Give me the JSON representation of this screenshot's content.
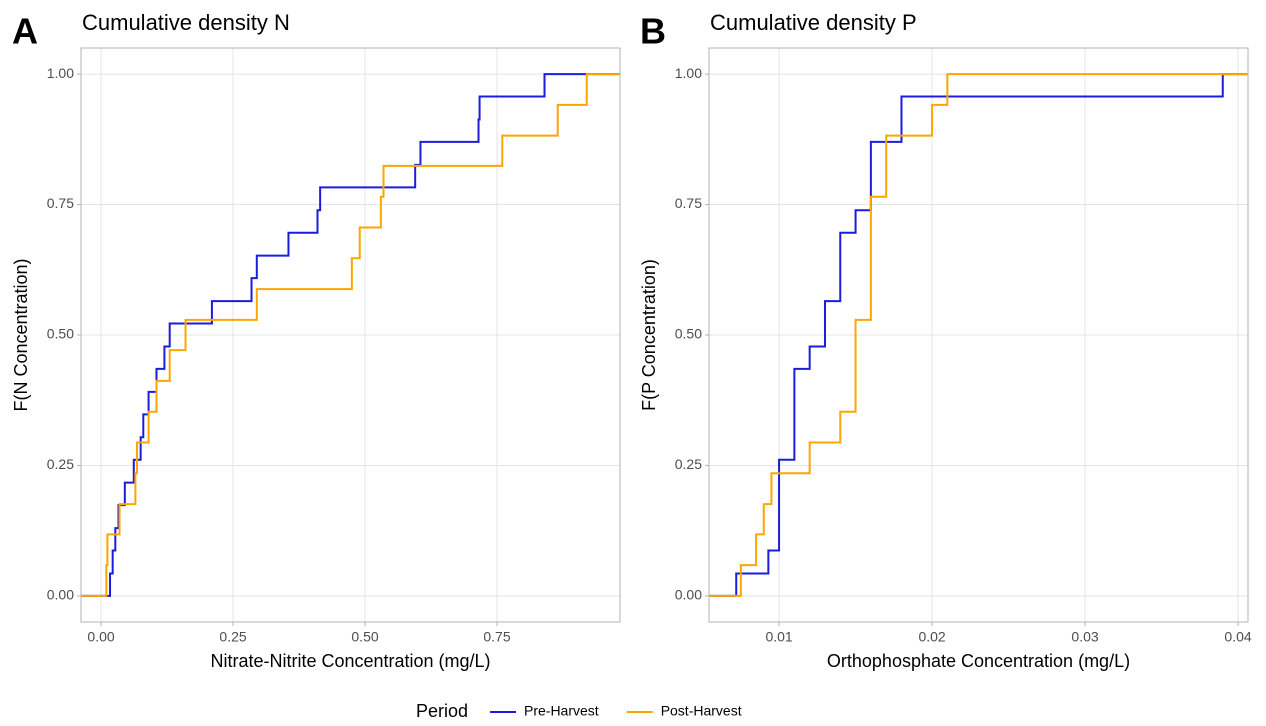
{
  "chart_data": [
    {
      "type": "step",
      "tag": "A",
      "title": "Cumulative density N",
      "x_label": "Nitrate-Nitrite Concentration (mg/L)",
      "y_label": "F(N Concentration)",
      "xlim": [
        -0.038,
        0.983
      ],
      "ylim": [
        -0.05,
        1.05
      ],
      "xticks": [
        {
          "value": 0,
          "label": "0.00"
        },
        {
          "value": 0.25,
          "label": "0.25"
        },
        {
          "value": 0.5,
          "label": "0.50"
        },
        {
          "value": 0.75,
          "label": "0.75"
        }
      ],
      "yticks": [
        {
          "value": 0,
          "label": "0.00"
        },
        {
          "value": 0.25,
          "label": "0.25"
        },
        {
          "value": 0.5,
          "label": "0.50"
        },
        {
          "value": 0.75,
          "label": "0.75"
        },
        {
          "value": 1,
          "label": "1.00"
        }
      ],
      "grid": true,
      "series": [
        {
          "name": "Pre-Harvest",
          "color": "#1c1cdc",
          "x": [
            -0.038,
            0.017,
            0.022,
            0.027,
            0.033,
            0.045,
            0.062,
            0.075,
            0.08,
            0.09,
            0.105,
            0.12,
            0.13,
            0.21,
            0.285,
            0.295,
            0.355,
            0.41,
            0.415,
            0.595,
            0.605,
            0.715,
            0.717,
            0.84
          ],
          "values": [
            0,
            0.043,
            0.087,
            0.13,
            0.174,
            0.217,
            0.261,
            0.304,
            0.348,
            0.391,
            0.435,
            0.478,
            0.522,
            0.565,
            0.609,
            0.652,
            0.696,
            0.739,
            0.783,
            0.826,
            0.87,
            0.913,
            0.957,
            1.0
          ]
        },
        {
          "name": "Post-Harvest",
          "color": "#ffa500",
          "x": [
            -0.038,
            0.01,
            0.012,
            0.035,
            0.065,
            0.068,
            0.09,
            0.105,
            0.13,
            0.16,
            0.295,
            0.475,
            0.49,
            0.53,
            0.535,
            0.76,
            0.865,
            0.92
          ],
          "values": [
            0,
            0.059,
            0.118,
            0.176,
            0.235,
            0.294,
            0.353,
            0.412,
            0.471,
            0.529,
            0.588,
            0.647,
            0.706,
            0.765,
            0.824,
            0.882,
            0.941,
            1.0
          ]
        }
      ]
    },
    {
      "type": "step",
      "tag": "B",
      "title": "Cumulative density P",
      "x_label": "Orthophosphate Concentration (mg/L)",
      "y_label": "F(P Concentration)",
      "xlim": [
        0.00542,
        0.04065
      ],
      "ylim": [
        -0.05,
        1.05
      ],
      "xticks": [
        0.01,
        0.02,
        0.03,
        0.04
      ],
      "yticks": [
        {
          "value": 0,
          "label": "0.00"
        },
        {
          "value": 0.25,
          "label": "0.25"
        },
        {
          "value": 0.5,
          "label": "0.50"
        },
        {
          "value": 0.75,
          "label": "0.75"
        },
        {
          "value": 1,
          "label": "1.00"
        }
      ],
      "grid": true,
      "series": [
        {
          "name": "Pre-Harvest",
          "color": "#1c1cdc",
          "x": [
            0.00542,
            0.0072,
            0.0093,
            0.01,
            0.011,
            0.012,
            0.013,
            0.014,
            0.015,
            0.016,
            0.018,
            0.039
          ],
          "values": [
            0,
            0.043,
            0.087,
            0.261,
            0.435,
            0.478,
            0.565,
            0.696,
            0.739,
            0.87,
            0.957,
            1.0
          ]
        },
        {
          "name": "Post-Harvest",
          "color": "#ffa500",
          "x": [
            0.00542,
            0.0075,
            0.0085,
            0.009,
            0.0095,
            0.012,
            0.014,
            0.015,
            0.016,
            0.017,
            0.02,
            0.021
          ],
          "values": [
            0,
            0.059,
            0.118,
            0.176,
            0.235,
            0.294,
            0.353,
            0.529,
            0.765,
            0.882,
            0.941,
            1.0
          ]
        }
      ]
    }
  ],
  "legend": {
    "title": "Period"
  }
}
